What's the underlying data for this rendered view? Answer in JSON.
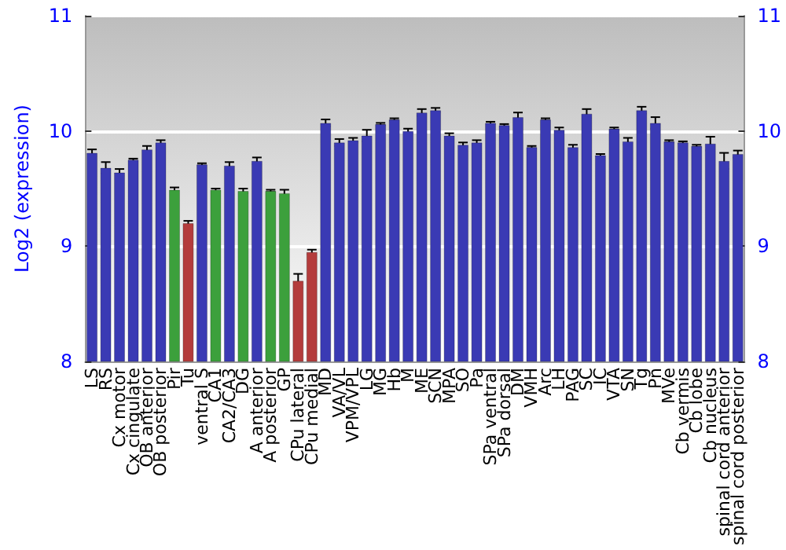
{
  "chart_data": {
    "type": "bar",
    "ylabel": "Log2 (expression)",
    "categories": [
      "LS",
      "RS",
      "Cx motor",
      "Cx cingulate",
      "OB anterior",
      "OB posterior",
      "Pir",
      "Tu",
      "ventral S",
      "CA1",
      "CA2/CA3",
      "DG",
      "A anterior",
      "A posterior",
      "GP",
      "CPu lateral",
      "CPu medial",
      "MD",
      "VA/VL",
      "VPM/VPL",
      "LG",
      "MG",
      "Hb",
      "M",
      "ME",
      "SCN",
      "MPA",
      "SO",
      "Pa",
      "SPa ventral",
      "SPa dorsal",
      "DM",
      "VMH",
      "Arc",
      "LH",
      "PAG",
      "SC",
      "IC",
      "VTA",
      "SN",
      "Tg",
      "Pn",
      "MVe",
      "Cb vermis",
      "Cb lobe",
      "Cb nucleus",
      "spinal cord anterior",
      "spinal cord posterior"
    ],
    "values": [
      9.81,
      9.68,
      9.64,
      9.75,
      9.84,
      9.9,
      9.49,
      9.2,
      9.71,
      9.49,
      9.7,
      9.48,
      9.74,
      9.48,
      9.46,
      8.7,
      8.95,
      10.07,
      9.9,
      9.92,
      9.96,
      10.06,
      10.1,
      10.0,
      10.16,
      10.18,
      9.96,
      9.88,
      9.9,
      10.07,
      10.05,
      10.12,
      9.86,
      10.1,
      10.01,
      9.86,
      10.15,
      9.79,
      10.02,
      9.91,
      10.18,
      10.07,
      9.91,
      9.9,
      9.87,
      9.89,
      9.74,
      9.8
    ],
    "errors": [
      0.03,
      0.05,
      0.03,
      0.01,
      0.03,
      0.02,
      0.02,
      0.02,
      0.01,
      0.01,
      0.03,
      0.02,
      0.03,
      0.01,
      0.03,
      0.06,
      0.02,
      0.03,
      0.03,
      0.02,
      0.05,
      0.01,
      0.01,
      0.02,
      0.03,
      0.02,
      0.02,
      0.02,
      0.02,
      0.01,
      0.01,
      0.04,
      0.01,
      0.01,
      0.02,
      0.02,
      0.04,
      0.01,
      0.01,
      0.03,
      0.03,
      0.05,
      0.01,
      0.01,
      0.01,
      0.06,
      0.07,
      0.03
    ],
    "colors": [
      "#3a3ab4",
      "#3a3ab4",
      "#3a3ab4",
      "#3a3ab4",
      "#3a3ab4",
      "#3a3ab4",
      "#3ca03c",
      "#b43c3c",
      "#3a3ab4",
      "#3ca03c",
      "#3a3ab4",
      "#3ca03c",
      "#3a3ab4",
      "#3ca03c",
      "#3ca03c",
      "#b43c3c",
      "#b43c3c",
      "#3a3ab4",
      "#3a3ab4",
      "#3a3ab4",
      "#3a3ab4",
      "#3a3ab4",
      "#3a3ab4",
      "#3a3ab4",
      "#3a3ab4",
      "#3a3ab4",
      "#3a3ab4",
      "#3a3ab4",
      "#3a3ab4",
      "#3a3ab4",
      "#3a3ab4",
      "#3a3ab4",
      "#3a3ab4",
      "#3a3ab4",
      "#3a3ab4",
      "#3a3ab4",
      "#3a3ab4",
      "#3a3ab4",
      "#3a3ab4",
      "#3a3ab4",
      "#3a3ab4",
      "#3a3ab4",
      "#3a3ab4",
      "#3a3ab4",
      "#3a3ab4",
      "#3a3ab4",
      "#3a3ab4",
      "#3a3ab4"
    ],
    "ylim": [
      8,
      11
    ],
    "yticks": [
      8,
      9,
      10,
      11
    ],
    "y2lim": [
      8,
      11
    ],
    "y2ticks": [
      8,
      9,
      10,
      11
    ],
    "grid": "y"
  }
}
